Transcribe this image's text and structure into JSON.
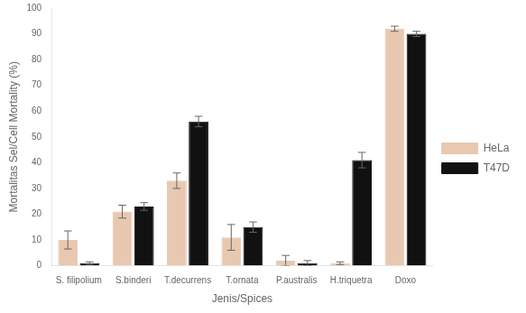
{
  "chart_data": {
    "type": "bar",
    "categories": [
      "S. filipolium",
      "S.binderi",
      "T.decurrens",
      "T.ornata",
      "P.australis",
      "H.triquetra",
      "Doxo"
    ],
    "series": [
      {
        "name": "HeLa",
        "color": "#e8c8b0",
        "values": [
          10,
          21,
          33,
          11,
          2,
          1,
          92
        ],
        "errors": [
          3.5,
          2.5,
          3,
          5,
          2,
          0.5,
          1
        ]
      },
      {
        "name": "T47D",
        "color": "#111111",
        "values": [
          1,
          23,
          56,
          15,
          1,
          41,
          90
        ],
        "errors": [
          0.5,
          1.5,
          2,
          2,
          1,
          3,
          1
        ]
      }
    ],
    "xlabel": "Jenis/Spices",
    "ylabel": "Mortalitas Sel/Cell Mortality (%)",
    "ylim": [
      0,
      100
    ],
    "yticks": [
      0,
      10,
      20,
      30,
      40,
      50,
      60,
      70,
      80,
      90,
      100
    ],
    "grid": false,
    "legend": "right"
  }
}
